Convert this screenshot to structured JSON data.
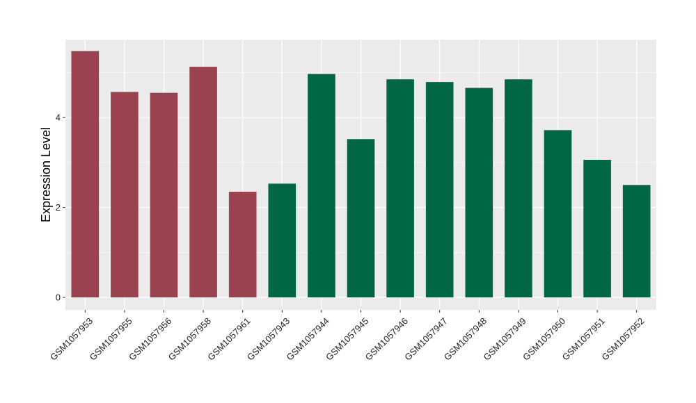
{
  "chart_data": {
    "type": "bar",
    "ylabel": "Expression Level",
    "xlabel": "",
    "ylim": [
      0,
      5.8
    ],
    "yticks": [
      0,
      2,
      4
    ],
    "grid": true,
    "categories": [
      "GSM1057953",
      "GSM1057955",
      "GSM1057956",
      "GSM1057958",
      "GSM1057961",
      "GSM1057943",
      "GSM1057944",
      "GSM1057945",
      "GSM1057946",
      "GSM1057947",
      "GSM1057948",
      "GSM1057949",
      "GSM1057950",
      "GSM1057951",
      "GSM1057952"
    ],
    "values": [
      5.48,
      4.57,
      4.55,
      5.13,
      2.35,
      2.53,
      4.97,
      3.52,
      4.85,
      4.79,
      4.66,
      4.85,
      3.72,
      3.06,
      2.5
    ],
    "groups": [
      0,
      0,
      0,
      0,
      0,
      1,
      1,
      1,
      1,
      1,
      1,
      1,
      1,
      1,
      1
    ],
    "colors": {
      "group_0": "#9b4250",
      "group_1": "#006644",
      "panel_bg": "#ebebeb",
      "grid": "#ffffff"
    }
  }
}
